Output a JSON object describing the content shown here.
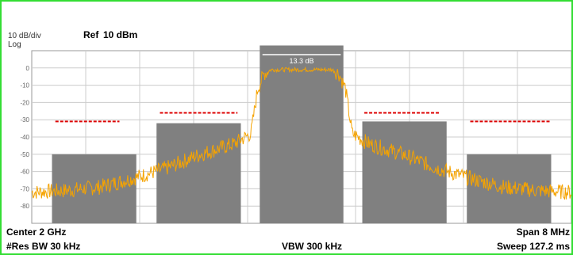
{
  "header": {
    "scale": "10 dB/div",
    "ref_label": "Ref",
    "ref_value": "10 dBm",
    "log_label": "Log"
  },
  "footer": {
    "center": "Center  2 GHz",
    "res_bw": "#Res BW  30 kHz",
    "vbw": "VBW  300 kHz",
    "span": "Span 8 MHz",
    "sweep": "Sweep  127.2 ms"
  },
  "colors": {
    "trace": "#f5a300",
    "mask": "#808080",
    "limit": "#dd0000",
    "grid": "#cccccc",
    "border": "#33dd33"
  },
  "chart_data": {
    "type": "line",
    "title": "",
    "xlabel": "",
    "ylabel": "",
    "x_unit": "MHz",
    "y_unit": "dBm",
    "xlim": [
      -4,
      4
    ],
    "ylim": [
      -90,
      10
    ],
    "grid": true,
    "y_ticks": [
      0,
      -10,
      -20,
      -30,
      -40,
      -50,
      -60,
      -70,
      -80
    ],
    "channel_power_label": "13.3 dB",
    "masks": [
      {
        "x": [
          -3.7,
          -2.45
        ],
        "top": -50
      },
      {
        "x": [
          -2.15,
          -0.9
        ],
        "top": -32
      },
      {
        "x": [
          -0.62,
          0.62
        ],
        "top": 13
      },
      {
        "x": [
          0.9,
          2.15
        ],
        "top": -31
      },
      {
        "x": [
          2.45,
          3.7
        ],
        "top": -50
      }
    ],
    "limit_lines": [
      {
        "x": [
          -3.65,
          -2.7
        ],
        "y": -31
      },
      {
        "x": [
          -2.1,
          -0.95
        ],
        "y": -26
      },
      {
        "x": [
          0.93,
          2.05
        ],
        "y": -26
      },
      {
        "x": [
          2.5,
          3.7
        ],
        "y": -31
      }
    ],
    "trace_shape": {
      "x": [
        -4.0,
        -3.5,
        -3.0,
        -2.5,
        -2.0,
        -1.5,
        -1.0,
        -0.75,
        -0.65,
        -0.55,
        -0.45,
        0.0,
        0.45,
        0.55,
        0.65,
        0.75,
        1.0,
        1.5,
        2.0,
        2.5,
        3.0,
        3.5,
        4.0
      ],
      "y": [
        -72,
        -71,
        -69,
        -64,
        -58,
        -50,
        -44,
        -38,
        -12,
        -3,
        -1,
        -1,
        -1,
        -3,
        -12,
        -38,
        -44,
        -50,
        -58,
        -64,
        -69,
        -71,
        -72
      ]
    }
  }
}
